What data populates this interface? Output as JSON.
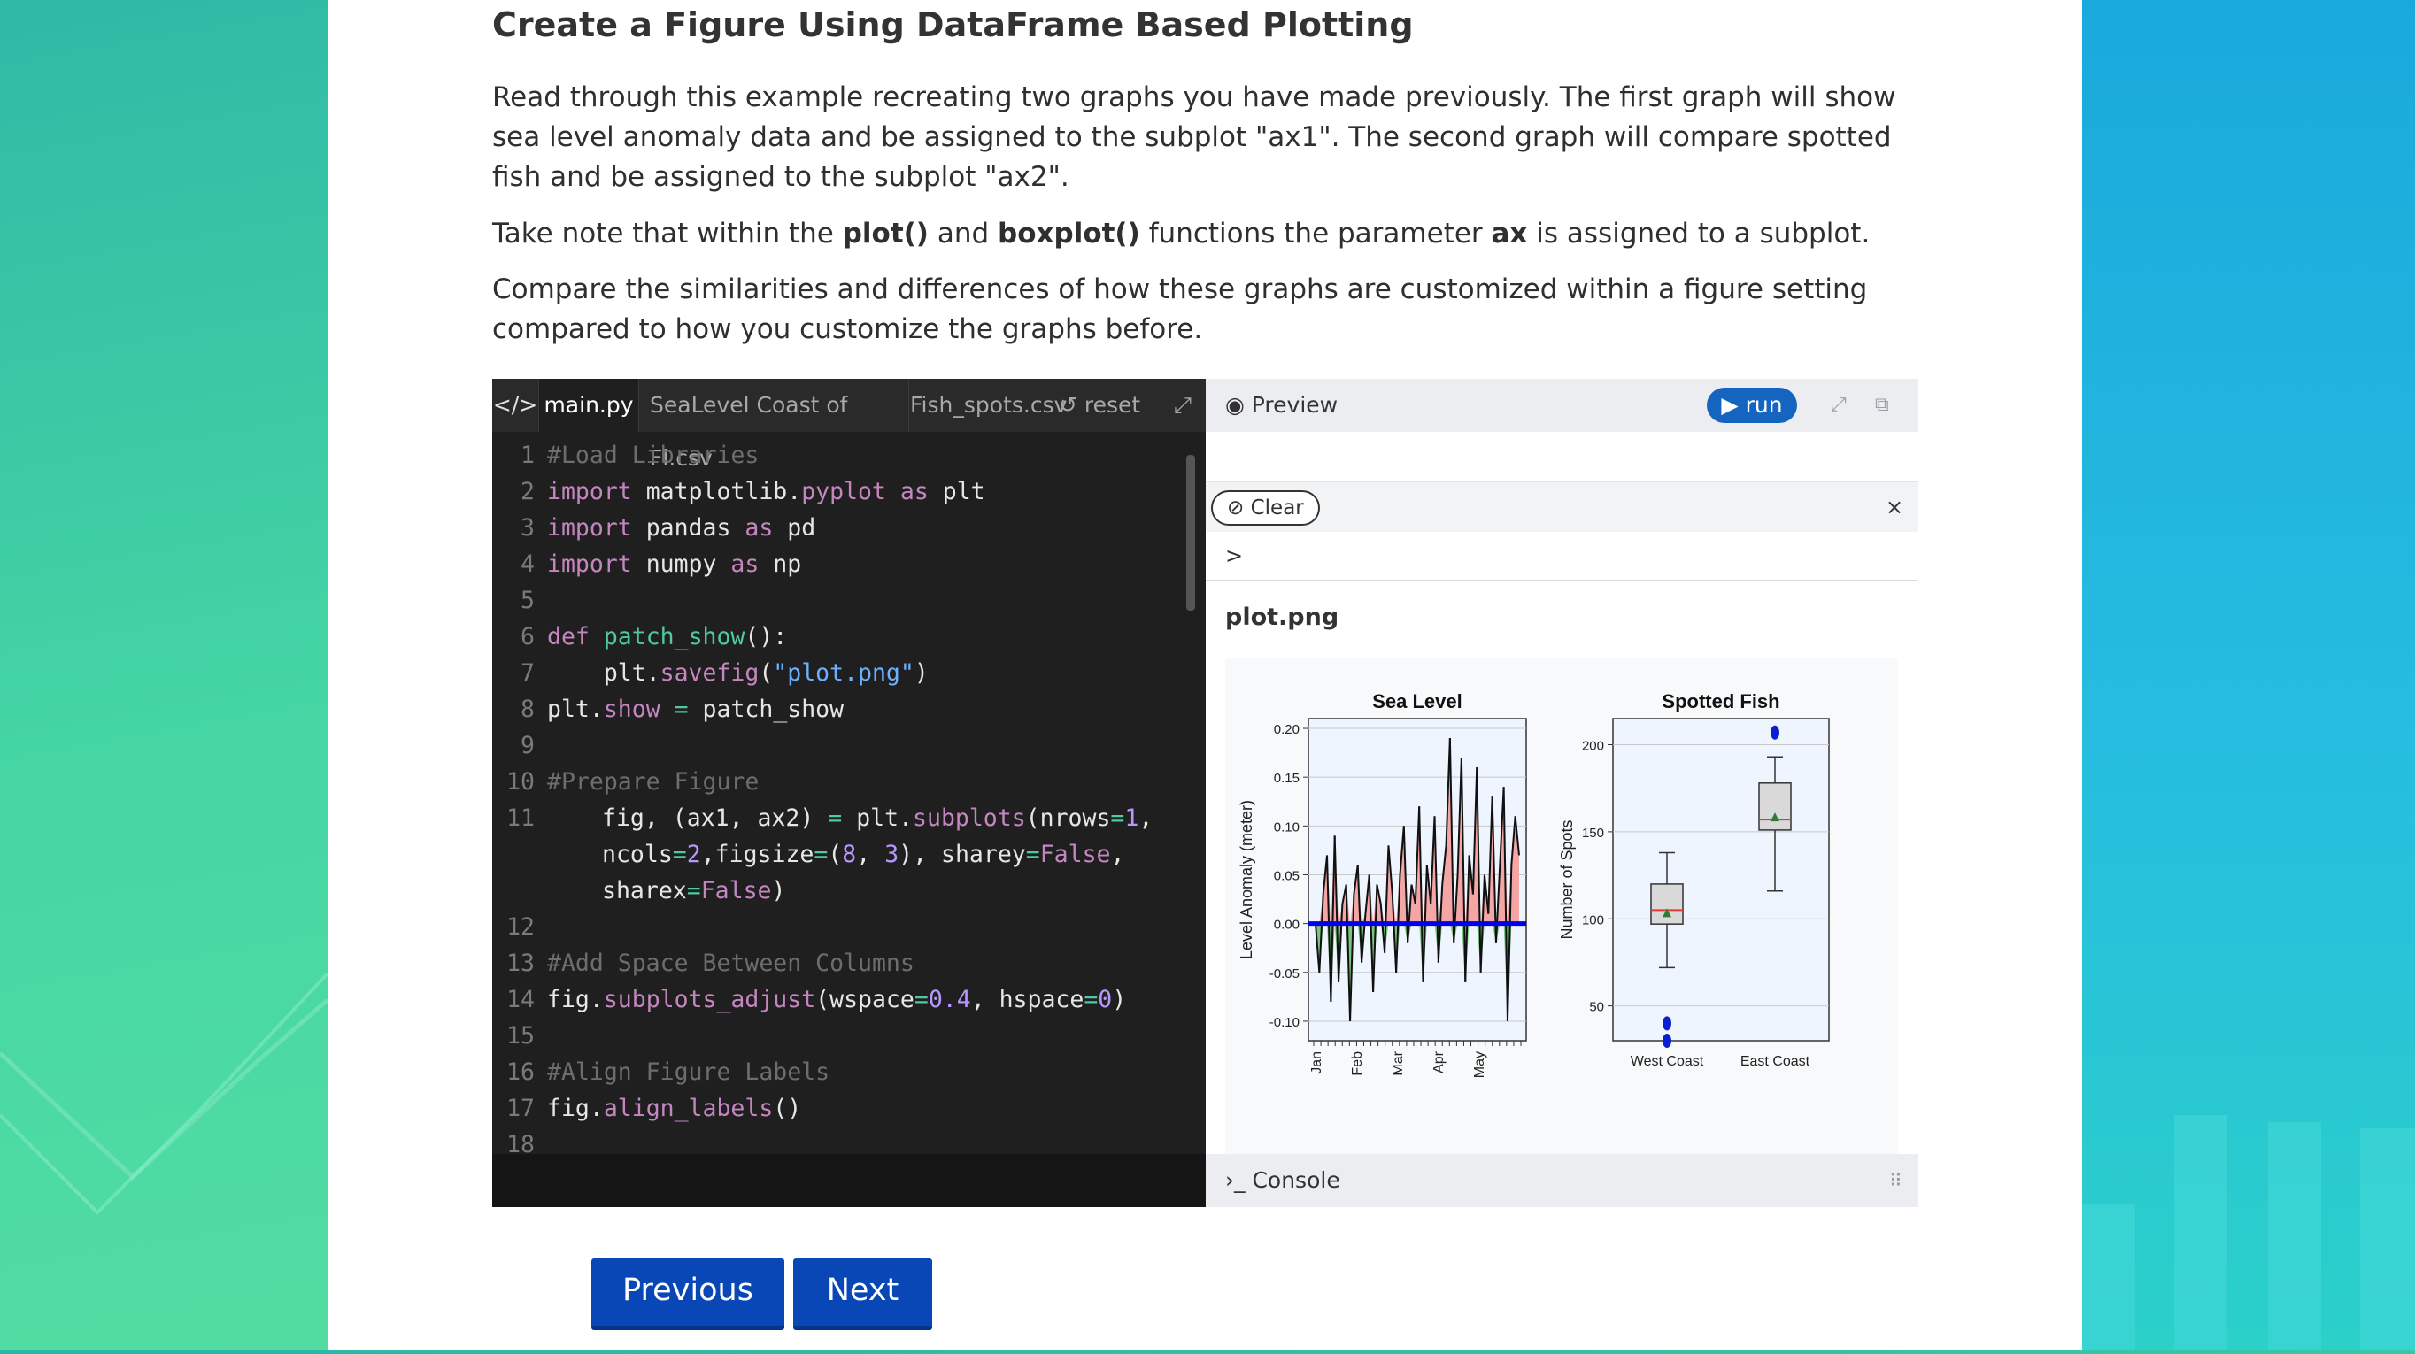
{
  "heading": "Create a Figure Using DataFrame Based Plotting",
  "paragraphs": {
    "p1": "Read through this example recreating two graphs you have made previously. The first graph will show sea level anomaly data and be assigned to the subplot \"ax1\". The second graph will compare spotted fish and be assigned to the subplot \"ax2\".",
    "p2_a": "Take note that within the ",
    "p2_plot": "plot()",
    "p2_b": " and ",
    "p2_boxplot": "boxplot()",
    "p2_c": " functions the parameter ",
    "p2_ax": "ax",
    "p2_d": " is assigned to a subplot.",
    "p3": "Compare the similarities and differences of how these graphs are customized within a figure setting compared to how you customize the graphs before."
  },
  "editor": {
    "tabs": {
      "code_icon": "</>",
      "main": "main.py",
      "sealevel": "SeaLevel Coast of Fl.csv",
      "fish": "Fish_spots.csv"
    },
    "reset_label": "reset",
    "expand_icon": "expand-icon",
    "line_numbers": [
      "1",
      "2",
      "3",
      "4",
      "5",
      "6",
      "7",
      "8",
      "9",
      "10",
      "11",
      "12",
      "13",
      "14",
      "15",
      "16",
      "17",
      "18"
    ]
  },
  "preview": {
    "label": "Preview",
    "run_label": "run",
    "clear_label": "Clear",
    "close_symbol": "×",
    "prompt_symbol": ">",
    "plot_filename": "plot.png",
    "console_label": "Console"
  },
  "chart_data": [
    {
      "type": "line",
      "title": "Sea Level",
      "xlabel": "",
      "ylabel": "Level Anomaly (meter)",
      "ylim": [
        -0.12,
        0.21
      ],
      "yticks": [
        "0.20",
        "0.15",
        "0.10",
        "0.05",
        "0.00",
        "-0.05",
        "-0.10"
      ],
      "ytick_values": [
        0.2,
        0.15,
        0.1,
        0.05,
        0.0,
        -0.05,
        -0.1
      ],
      "xticks": [
        "Jan",
        "Feb",
        "Mar",
        "Apr",
        "May"
      ],
      "grid": true,
      "fill_above_color": "#f4a6a6",
      "fill_below_color": "#7bc47b",
      "zero_line_color": "#0000ee",
      "values": [
        0.0,
        -0.05,
        0.03,
        0.07,
        -0.08,
        0.09,
        -0.06,
        0.02,
        0.04,
        -0.1,
        0.03,
        0.06,
        -0.04,
        0.01,
        0.05,
        -0.07,
        0.04,
        0.02,
        -0.03,
        0.08,
        0.03,
        -0.05,
        0.05,
        0.1,
        -0.02,
        0.04,
        0.02,
        0.12,
        -0.06,
        0.06,
        0.02,
        0.11,
        -0.04,
        0.04,
        0.08,
        0.19,
        -0.02,
        0.05,
        0.17,
        -0.06,
        0.07,
        0.03,
        0.16,
        -0.05,
        0.05,
        0.01,
        0.13,
        -0.02,
        0.06,
        0.14,
        -0.1,
        0.06,
        0.11,
        0.07
      ]
    },
    {
      "type": "boxplot",
      "title": "Spotted Fish",
      "xlabel": "",
      "ylabel": "Number of Spots",
      "ylim": [
        30,
        215
      ],
      "yticks": [
        "200",
        "150",
        "100",
        "50"
      ],
      "ytick_values": [
        200,
        150,
        100,
        50
      ],
      "grid": true,
      "categories": [
        "West Coast",
        "East Coast"
      ],
      "boxes": [
        {
          "whisker_low": 72,
          "q1": 97,
          "median": 105,
          "mean": 103,
          "q3": 120,
          "whisker_high": 138,
          "outliers": [
            40,
            30
          ]
        },
        {
          "whisker_low": 116,
          "q1": 151,
          "median": 157,
          "mean": 158,
          "q3": 178,
          "whisker_high": 193,
          "outliers": [
            207
          ]
        }
      ]
    }
  ],
  "navigation": {
    "previous": "Previous",
    "next": "Next"
  }
}
